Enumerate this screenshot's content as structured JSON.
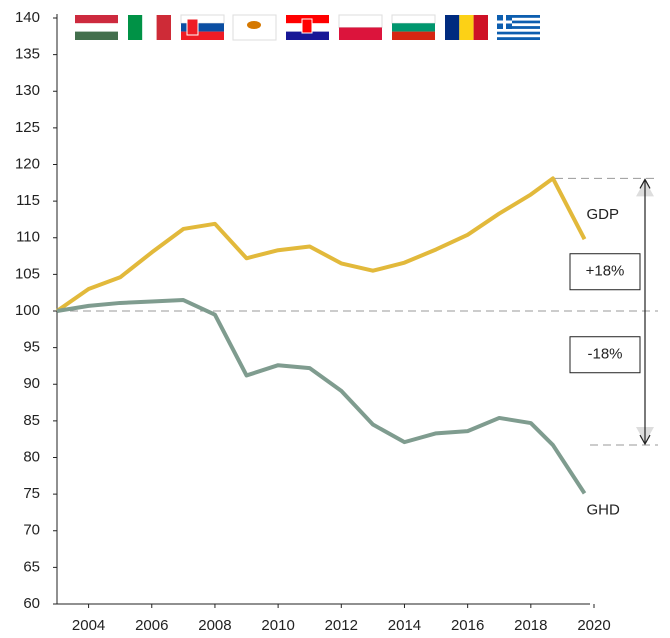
{
  "chart_data": {
    "type": "line",
    "x": [
      2003,
      2004,
      2005,
      2006,
      2007,
      2008,
      2009,
      2010,
      2011,
      2012,
      2013,
      2014,
      2015,
      2016,
      2017,
      2018,
      2018.7,
      2019.7
    ],
    "series": [
      {
        "name": "GDP",
        "color": "#e2b93b",
        "values": [
          100,
          103,
          104.6,
          108,
          111.2,
          111.9,
          107.2,
          108.3,
          108.8,
          106.5,
          105.5,
          106.6,
          108.4,
          110.4,
          113.3,
          115.9,
          118.1,
          109.8
        ]
      },
      {
        "name": "GHD",
        "color": "#7f9c8f",
        "values": [
          100,
          100.7,
          101.1,
          101.3,
          101.5,
          99.5,
          91.2,
          92.6,
          92.2,
          89.1,
          84.5,
          82.1,
          83.3,
          83.6,
          85.4,
          84.7,
          81.7,
          75.1
        ]
      }
    ],
    "xlim": [
      2003,
      2020
    ],
    "xticks": [
      2004,
      2006,
      2008,
      2010,
      2012,
      2014,
      2016,
      2018,
      2020
    ],
    "ylim": [
      60,
      140
    ],
    "yticks": [
      60,
      65,
      70,
      75,
      80,
      85,
      90,
      95,
      100,
      105,
      110,
      115,
      120,
      125,
      130,
      135,
      140
    ],
    "reference_line": 100,
    "annotations": [
      "+18%",
      "-18%"
    ]
  }
}
